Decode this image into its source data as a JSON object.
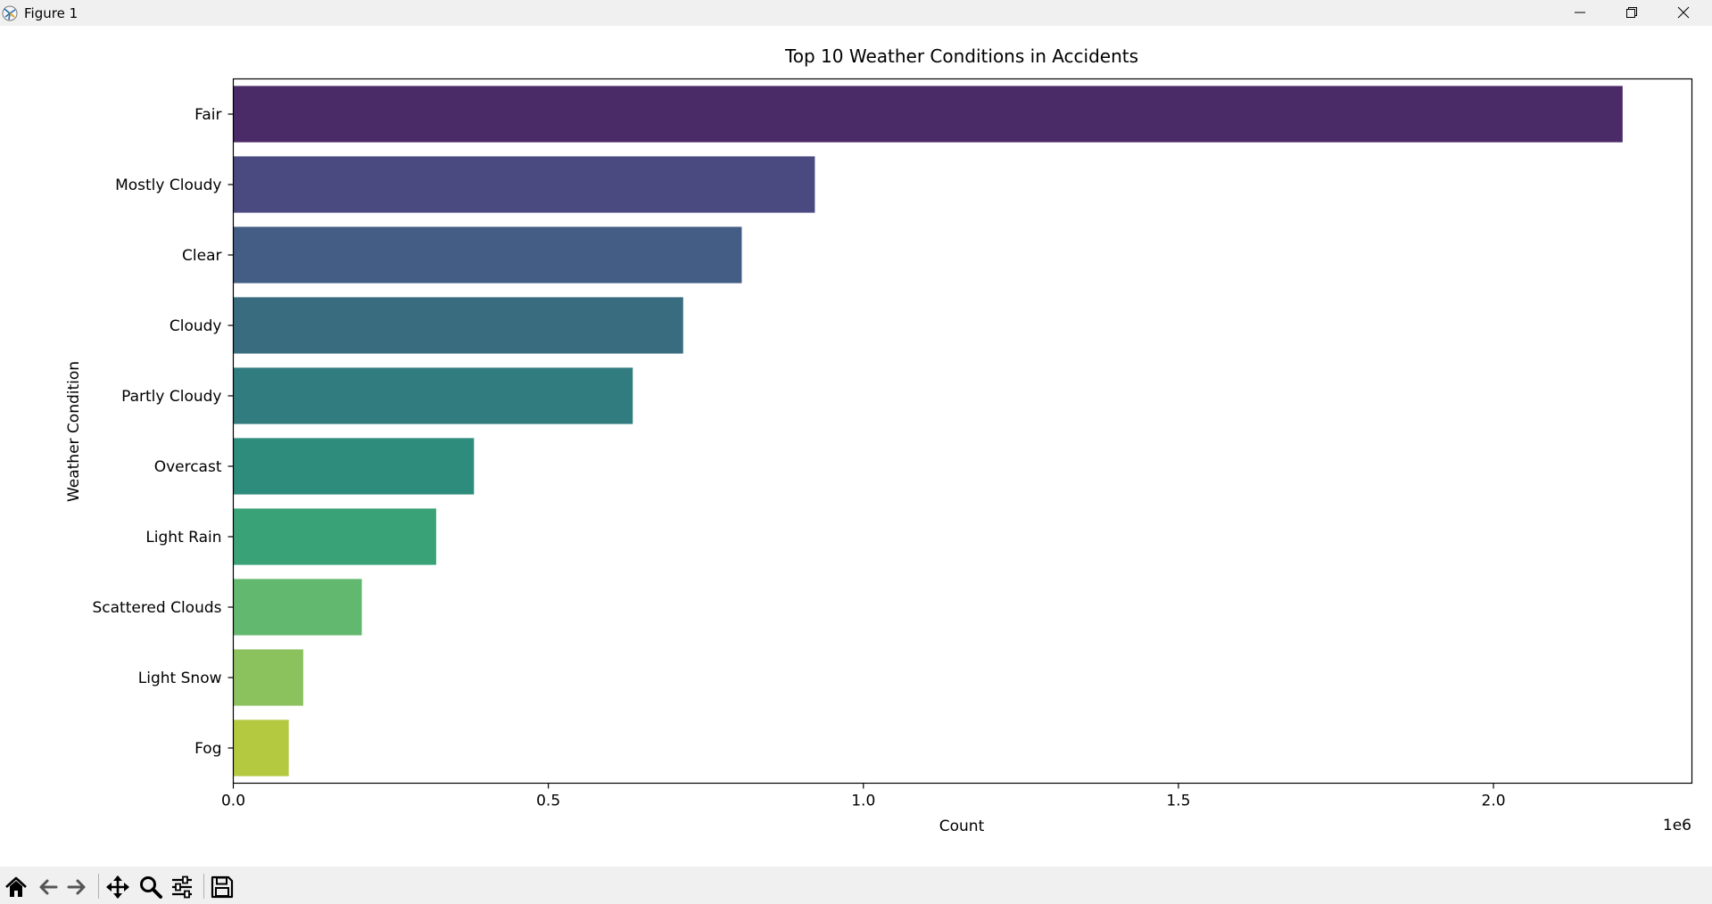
{
  "window": {
    "title": "Figure 1",
    "controls": [
      "minimize-icon",
      "restore-icon",
      "close-icon"
    ]
  },
  "toolbar": {
    "buttons": [
      "home-icon",
      "back-icon",
      "forward-icon",
      "pan-icon",
      "zoom-icon",
      "configure-subplots-icon",
      "save-icon"
    ]
  },
  "chart_data": {
    "type": "bar",
    "orientation": "horizontal",
    "title": "Top 10 Weather Conditions in Accidents",
    "xlabel": "Count",
    "ylabel": "Weather Condition",
    "offset_text": "1e6",
    "xlim": [
      0,
      2.315
    ],
    "xticks": [
      0.0,
      0.5,
      1.0,
      1.5,
      2.0
    ],
    "xtick_labels": [
      "0.0",
      "0.5",
      "1.0",
      "1.5",
      "2.0"
    ],
    "grid": false,
    "categories": [
      "Fair",
      "Mostly Cloudy",
      "Clear",
      "Cloudy",
      "Partly Cloudy",
      "Overcast",
      "Light Rain",
      "Scattered Clouds",
      "Light Snow",
      "Fog"
    ],
    "values": [
      2.205,
      0.923,
      0.807,
      0.714,
      0.634,
      0.382,
      0.322,
      0.204,
      0.111,
      0.088
    ],
    "colors": [
      "#4a2b67",
      "#4a4980",
      "#435d84",
      "#386c7e",
      "#317c7f",
      "#2d8c7b",
      "#3aa277",
      "#63b86f",
      "#8bc25d",
      "#b4c840"
    ]
  }
}
